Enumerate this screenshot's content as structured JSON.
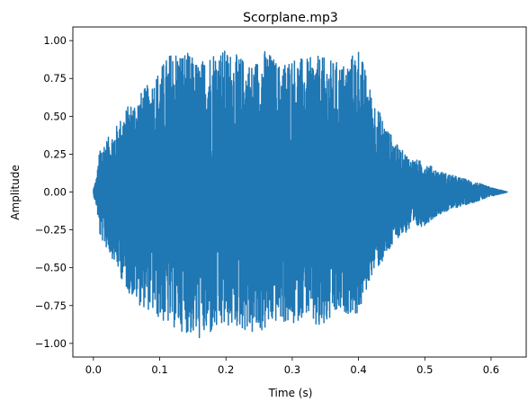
{
  "chart_data": {
    "type": "line",
    "title": "Scorplane.mp3",
    "xlabel": "Time (s)",
    "ylabel": "Amplitude",
    "xlim": [
      -0.031,
      0.653
    ],
    "ylim": [
      -1.09,
      1.09
    ],
    "x_ticks": [
      0.0,
      0.1,
      0.2,
      0.3,
      0.4,
      0.5,
      0.6
    ],
    "x_tick_labels": [
      "0.0",
      "0.1",
      "0.2",
      "0.3",
      "0.4",
      "0.5",
      "0.6"
    ],
    "y_ticks": [
      1.0,
      0.75,
      0.5,
      0.25,
      0.0,
      -0.25,
      -0.5,
      -0.75,
      -1.0
    ],
    "y_tick_labels": [
      "1.00",
      "0.75",
      "0.50",
      "0.25",
      "0.00",
      "−0.25",
      "−0.50",
      "−0.75",
      "−1.00"
    ],
    "grid": false,
    "series": [
      {
        "color": "#1f77b4",
        "envelope_x": [
          0.0,
          0.005,
          0.01,
          0.03,
          0.05,
          0.07,
          0.09,
          0.1,
          0.12,
          0.14,
          0.16,
          0.18,
          0.2,
          0.22,
          0.24,
          0.26,
          0.28,
          0.3,
          0.32,
          0.34,
          0.36,
          0.38,
          0.4,
          0.42,
          0.44,
          0.46,
          0.48,
          0.5,
          0.52,
          0.55,
          0.58,
          0.6,
          0.625
        ],
        "envelope_upper": [
          0.02,
          0.1,
          0.3,
          0.4,
          0.56,
          0.65,
          0.75,
          0.82,
          0.95,
          0.93,
          0.85,
          0.95,
          0.94,
          0.9,
          0.85,
          0.95,
          0.85,
          0.9,
          0.88,
          0.9,
          0.87,
          0.85,
          0.97,
          0.65,
          0.45,
          0.3,
          0.22,
          0.2,
          0.14,
          0.1,
          0.06,
          0.03,
          0.0
        ],
        "envelope_lower": [
          -0.02,
          -0.1,
          -0.3,
          -0.45,
          -0.65,
          -0.75,
          -0.8,
          -0.85,
          -0.9,
          -0.93,
          -0.98,
          -0.95,
          -0.9,
          -0.9,
          -0.95,
          -0.92,
          -0.85,
          -0.9,
          -0.8,
          -0.95,
          -0.85,
          -0.8,
          -0.82,
          -0.55,
          -0.45,
          -0.3,
          -0.25,
          -0.22,
          -0.15,
          -0.1,
          -0.06,
          -0.03,
          0.0
        ]
      }
    ]
  }
}
